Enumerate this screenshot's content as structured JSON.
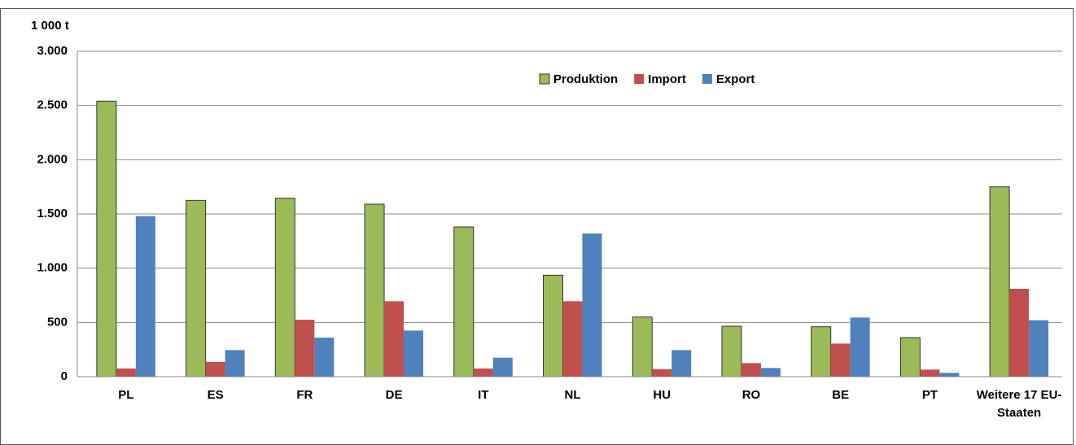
{
  "chart_data": {
    "type": "bar",
    "y_unit": "1 000 t",
    "categories": [
      "PL",
      "ES",
      "FR",
      "DE",
      "IT",
      "NL",
      "HU",
      "RO",
      "BE",
      "PT",
      "Weitere 17 EU-Staaten"
    ],
    "series": [
      {
        "name": "Produktion",
        "color": "#9bbb59",
        "values": [
          2540,
          1625,
          1645,
          1590,
          1380,
          935,
          550,
          465,
          460,
          360,
          1750
        ]
      },
      {
        "name": "Import",
        "color": "#c0504d",
        "values": [
          75,
          135,
          525,
          695,
          75,
          695,
          70,
          125,
          305,
          65,
          810
        ]
      },
      {
        "name": "Export",
        "color": "#4f81bd",
        "values": [
          1480,
          245,
          360,
          425,
          175,
          1320,
          245,
          80,
          545,
          35,
          520
        ]
      }
    ],
    "ylim": [
      0,
      3000
    ],
    "yticks": [
      0,
      500,
      {
        "value": 1000,
        "label": "1.000"
      },
      {
        "value": 1500,
        "label": "1.500"
      },
      {
        "value": 2000,
        "label": "2.000"
      },
      {
        "value": 2500,
        "label": "2.500"
      },
      {
        "value": 3000,
        "label": "3.000"
      }
    ],
    "grid": true,
    "legend": "top"
  }
}
